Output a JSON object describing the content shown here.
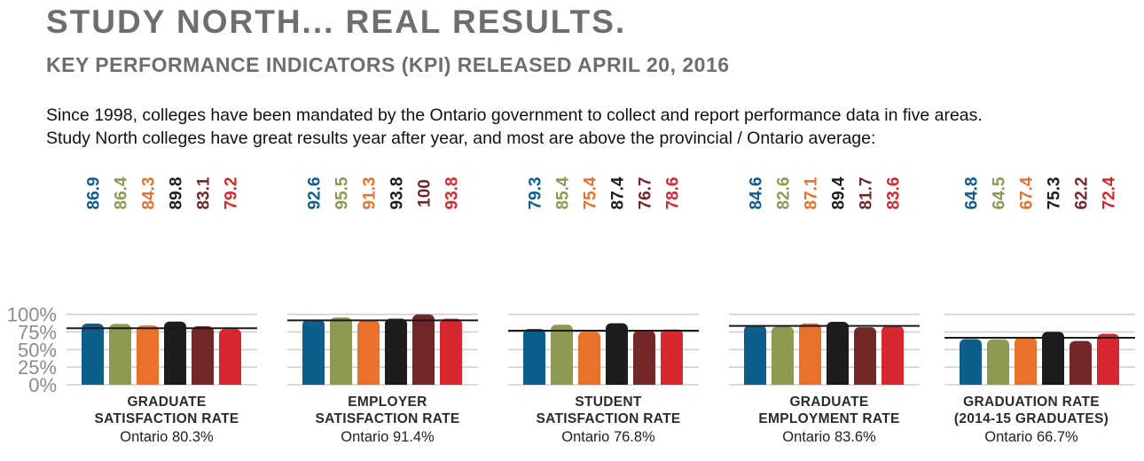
{
  "header": {
    "title": "STUDY NORTH... REAL RESULTS.",
    "subtitle": "KEY PERFORMANCE INDICATORS (KPI) RELEASED APRIL 20, 2016"
  },
  "intro": {
    "line1": "Since 1998, colleges have been mandated by the Ontario government to collect and report performance data in five areas.",
    "line2": "Study North colleges have great results year after year, and most are above the provincial / Ontario average:"
  },
  "colors": {
    "series": [
      "#0d5e8c",
      "#8c9a52",
      "#e8722c",
      "#1d1d1f",
      "#742728",
      "#d7282f"
    ],
    "grid": "#cfd0d2",
    "average_line": "#1a1a1a",
    "tick_text": "#8a8b8d"
  },
  "chart_data": {
    "type": "bar",
    "y_axis": {
      "ticks": [
        0,
        25,
        50,
        75,
        100
      ],
      "tick_labels": [
        "0%",
        "25%",
        "50%",
        "75%",
        "100%"
      ],
      "range": [
        0,
        100
      ]
    },
    "groups": [
      {
        "caption_lines": [
          "GRADUATE",
          "SATISFACTION RATE"
        ],
        "average_label": "Ontario 80.3%",
        "average": 80.3,
        "values": [
          86.9,
          86.4,
          84.3,
          89.8,
          83.1,
          79.2
        ],
        "value_labels": [
          "86.9",
          "86.4",
          "84.3",
          "89.8",
          "83.1",
          "79.2"
        ]
      },
      {
        "caption_lines": [
          "EMPLOYER",
          "SATISFACTION RATE"
        ],
        "average_label": "Ontario 91.4%",
        "average": 91.4,
        "values": [
          92.6,
          95.5,
          91.3,
          93.8,
          100,
          93.8
        ],
        "value_labels": [
          "92.6",
          "95.5",
          "91.3",
          "93.8",
          "100",
          "93.8"
        ]
      },
      {
        "caption_lines": [
          "STUDENT",
          "SATISFACTION RATE"
        ],
        "average_label": "Ontario 76.8%",
        "average": 76.8,
        "values": [
          79.3,
          85.4,
          75.4,
          87.4,
          76.7,
          78.6
        ],
        "value_labels": [
          "79.3",
          "85.4",
          "75.4",
          "87.4",
          "76.7",
          "78.6"
        ]
      },
      {
        "caption_lines": [
          "GRADUATE",
          "EMPLOYMENT RATE"
        ],
        "average_label": "Ontario 83.6%",
        "average": 83.6,
        "values": [
          84.6,
          82.6,
          87.1,
          89.4,
          81.7,
          83.6
        ],
        "value_labels": [
          "84.6",
          "82.6",
          "87.1",
          "89.4",
          "81.7",
          "83.6"
        ]
      },
      {
        "caption_lines": [
          "GRADUATION RATE",
          "(2014-15 GRADUATES)"
        ],
        "average_label": "Ontario 66.7%",
        "average": 66.7,
        "values": [
          64.8,
          64.5,
          67.4,
          75.3,
          62.2,
          72.4
        ],
        "value_labels": [
          "64.8",
          "64.5",
          "67.4",
          "75.3",
          "62.2",
          "72.4"
        ]
      }
    ]
  }
}
